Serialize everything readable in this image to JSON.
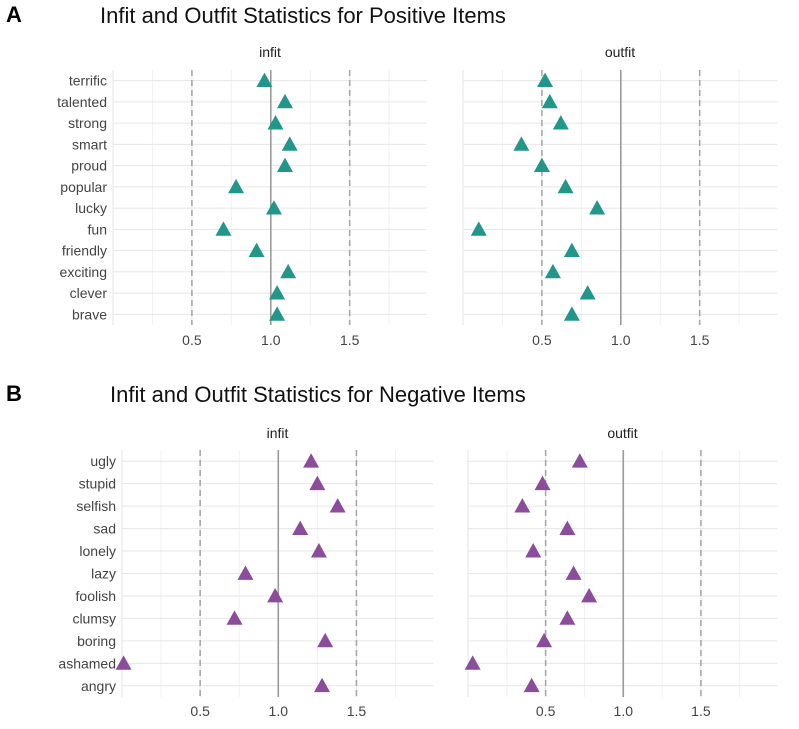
{
  "chart_data": [
    {
      "type": "scatter",
      "panel": "A",
      "title": "Infit and Outfit Statistics for Positive Items",
      "marker_color": "#21968A",
      "marker": "triangle",
      "items": [
        "terrific",
        "talented",
        "strong",
        "smart",
        "proud",
        "popular",
        "lucky",
        "fun",
        "friendly",
        "exciting",
        "clever",
        "brave"
      ],
      "facets": [
        {
          "label": "infit",
          "values": [
            0.96,
            1.09,
            1.03,
            1.12,
            1.09,
            0.78,
            1.02,
            0.7,
            0.91,
            1.11,
            1.04,
            1.04
          ],
          "xlim": [
            0,
            1.99
          ],
          "ref_solid": 1.0,
          "ref_dashed": [
            0.5,
            1.5
          ],
          "ticks": [
            "0.5",
            "1.0",
            "1.5"
          ],
          "tick_values": [
            0.5,
            1.0,
            1.5
          ]
        },
        {
          "label": "outfit",
          "values": [
            0.52,
            0.55,
            0.62,
            0.37,
            0.5,
            0.65,
            0.85,
            0.1,
            0.69,
            0.57,
            0.79,
            0.69
          ],
          "xlim": [
            0,
            1.99
          ],
          "ref_solid": 1.0,
          "ref_dashed": [
            0.5,
            1.5
          ],
          "ticks": [
            "0.5",
            "1.0",
            "1.5"
          ],
          "tick_values": [
            0.5,
            1.0,
            1.5
          ]
        }
      ]
    },
    {
      "type": "scatter",
      "panel": "B",
      "title": "Infit and Outfit Statistics for Negative Items",
      "marker_color": "#8A4C9B",
      "marker": "triangle",
      "items": [
        "ugly",
        "stupid",
        "selfish",
        "sad",
        "lonely",
        "lazy",
        "foolish",
        "clumsy",
        "boring",
        "ashamed",
        "angry"
      ],
      "facets": [
        {
          "label": "infit",
          "values": [
            1.21,
            1.25,
            1.38,
            1.14,
            1.26,
            0.79,
            0.98,
            0.72,
            1.3,
            0.01,
            1.28
          ],
          "xlim": [
            0,
            1.99
          ],
          "ref_solid": 1.0,
          "ref_dashed": [
            0.5,
            1.5
          ],
          "ticks": [
            "0.5",
            "1.0",
            "1.5"
          ],
          "tick_values": [
            0.5,
            1.0,
            1.5
          ]
        },
        {
          "label": "outfit",
          "values": [
            0.72,
            0.48,
            0.35,
            0.64,
            0.42,
            0.68,
            0.78,
            0.64,
            0.49,
            0.03,
            0.41
          ],
          "xlim": [
            0,
            1.99
          ],
          "ref_solid": 1.0,
          "ref_dashed": [
            0.5,
            1.5
          ],
          "ticks": [
            "0.5",
            "1.0",
            "1.5"
          ],
          "tick_values": [
            0.5,
            1.0,
            1.5
          ]
        }
      ]
    }
  ]
}
